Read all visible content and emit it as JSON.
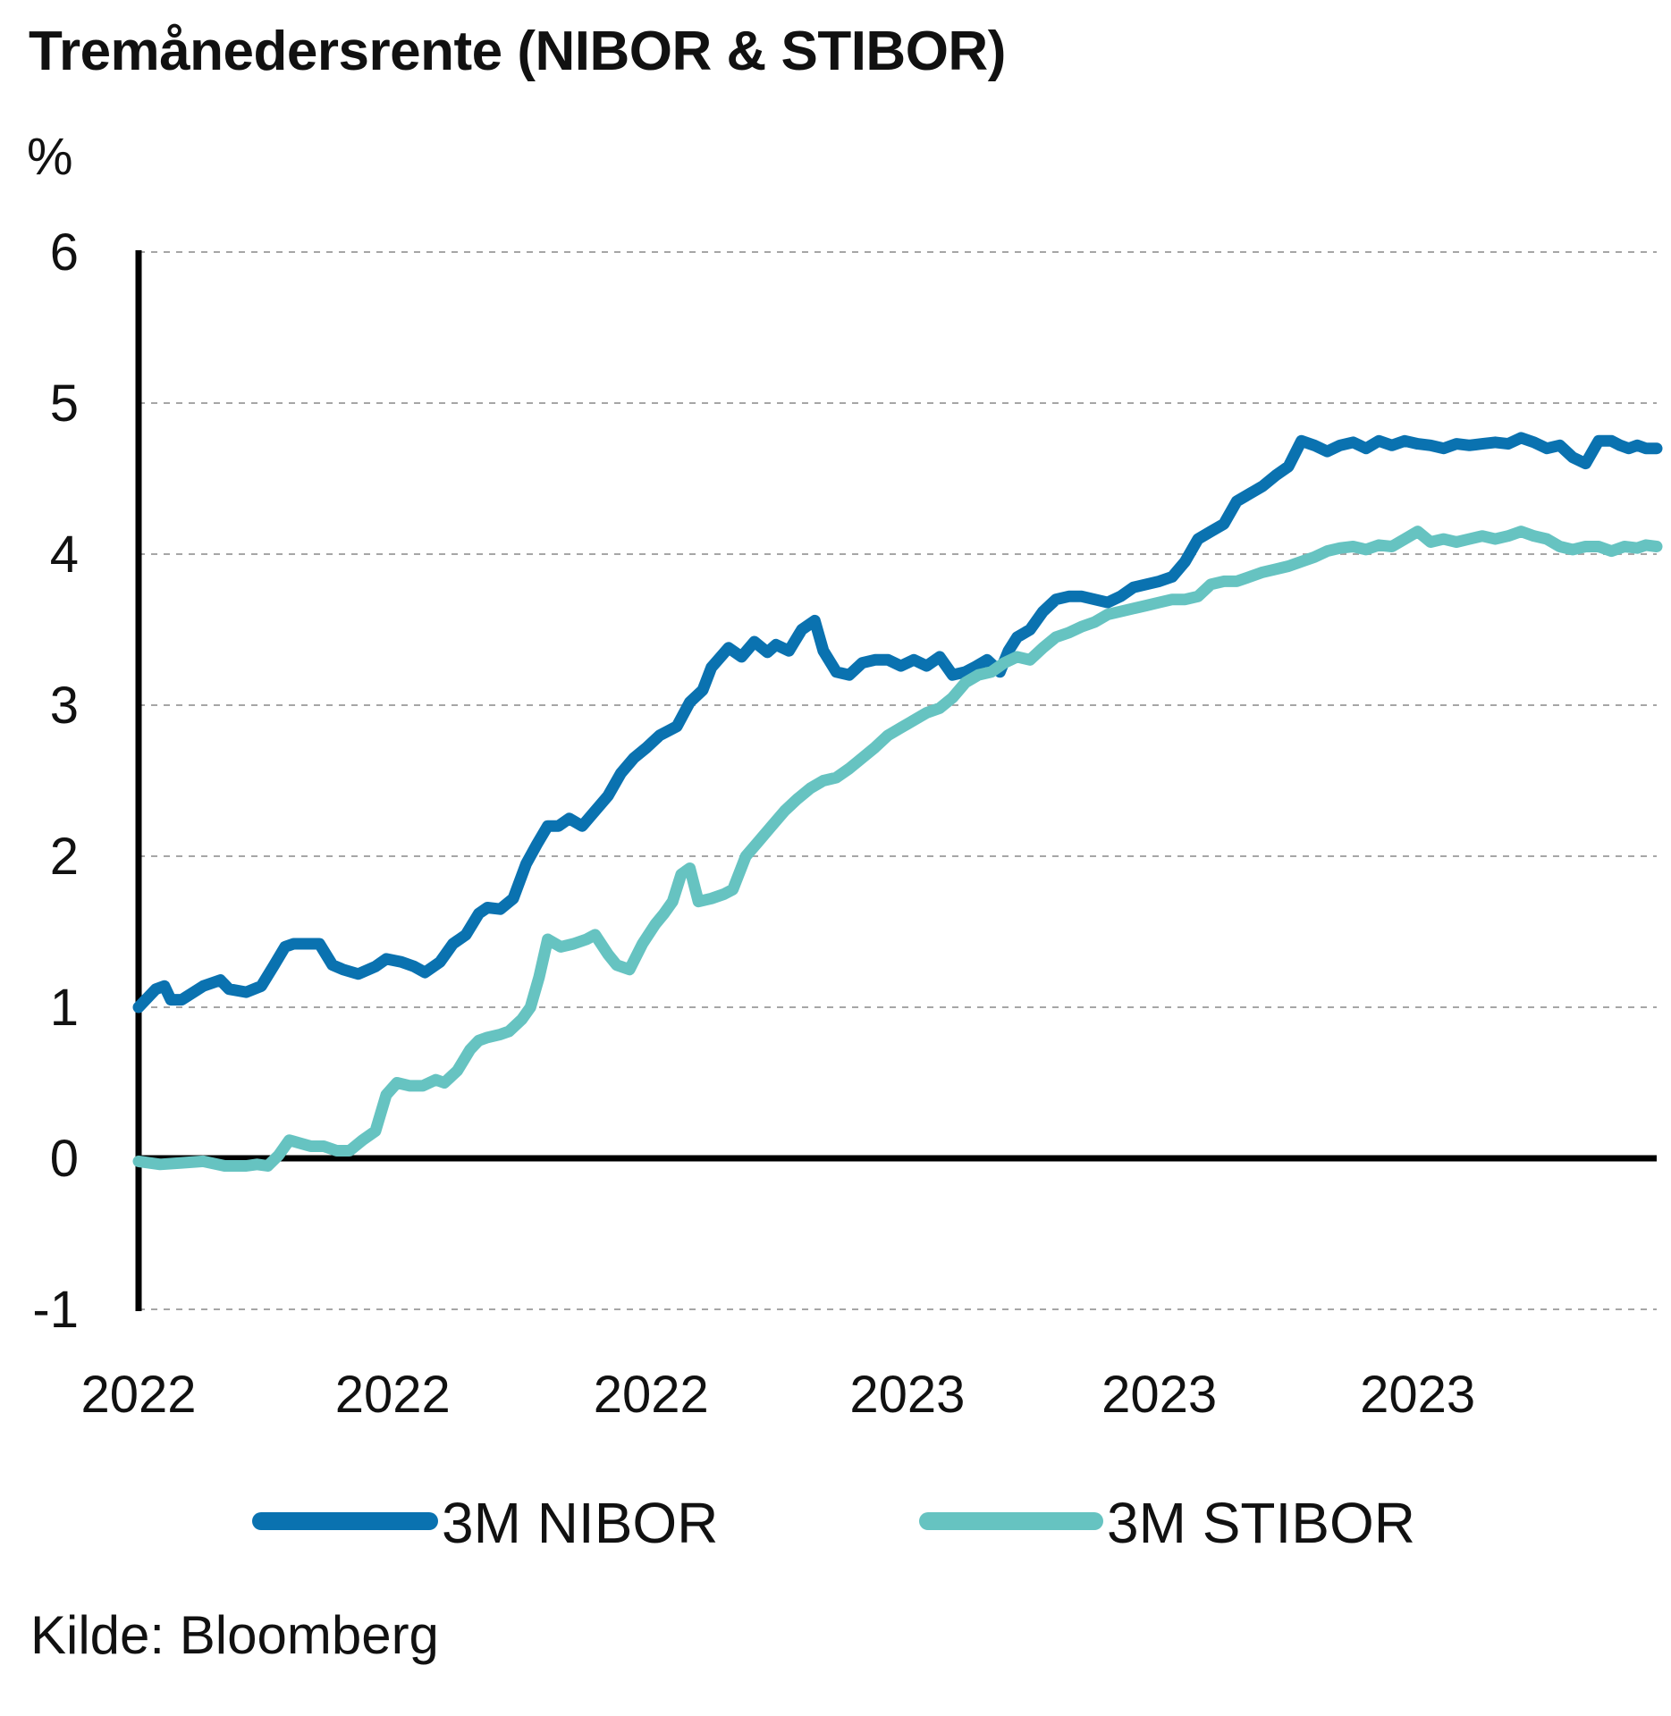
{
  "chart_data": {
    "type": "line",
    "title": "Tremånedersrente (NIBOR & STIBOR)",
    "ylabel": "%",
    "xlabel": "",
    "source": "Kilde: Bloomberg",
    "ylim": [
      -1,
      6
    ],
    "yticks": [
      -1,
      0,
      1,
      2,
      3,
      4,
      5,
      6
    ],
    "xlim": [
      0,
      705
    ],
    "x_ticks": [
      {
        "x": 0,
        "label": "2022"
      },
      {
        "x": 118,
        "label": "2022"
      },
      {
        "x": 238,
        "label": "2022"
      },
      {
        "x": 357,
        "label": "2023"
      },
      {
        "x": 474,
        "label": "2023"
      },
      {
        "x": 594,
        "label": "2023"
      }
    ],
    "grid": "horizontal dashed",
    "legend_position": "bottom",
    "series": [
      {
        "name": "3M NIBOR",
        "color": "#0a72b0",
        "x": [
          0,
          8,
          12,
          15,
          20,
          30,
          38,
          42,
          50,
          57,
          63,
          68,
          72,
          80,
          84,
          90,
          95,
          102,
          110,
          115,
          122,
          128,
          133,
          140,
          146,
          152,
          158,
          162,
          168,
          174,
          180,
          185,
          190,
          195,
          200,
          206,
          212,
          218,
          224,
          230,
          236,
          242,
          246,
          250,
          256,
          262,
          266,
          274,
          280,
          286,
          292,
          296,
          302,
          308,
          314,
          318,
          324,
          330,
          336,
          342,
          348,
          354,
          360,
          366,
          372,
          378,
          384,
          388,
          394,
          400,
          404,
          408,
          414,
          420,
          426,
          432,
          438,
          444,
          450,
          456,
          462,
          468,
          474,
          480,
          486,
          492,
          498,
          504,
          510,
          516,
          522,
          528,
          534,
          540,
          546,
          552,
          558,
          564,
          570,
          576,
          582,
          588,
          594,
          600,
          606,
          612,
          618,
          624,
          630,
          636,
          642,
          648,
          654,
          660,
          666,
          672,
          678,
          684,
          688,
          692,
          696,
          700,
          705
        ],
        "values": [
          1.0,
          1.12,
          1.14,
          1.05,
          1.05,
          1.14,
          1.18,
          1.12,
          1.1,
          1.14,
          1.28,
          1.4,
          1.42,
          1.42,
          1.42,
          1.28,
          1.25,
          1.22,
          1.27,
          1.32,
          1.3,
          1.27,
          1.23,
          1.3,
          1.42,
          1.48,
          1.62,
          1.66,
          1.65,
          1.72,
          1.95,
          2.08,
          2.2,
          2.2,
          2.25,
          2.2,
          2.3,
          2.4,
          2.55,
          2.65,
          2.72,
          2.8,
          2.83,
          2.86,
          3.02,
          3.1,
          3.25,
          3.38,
          3.32,
          3.42,
          3.35,
          3.4,
          3.36,
          3.5,
          3.56,
          3.36,
          3.22,
          3.2,
          3.28,
          3.3,
          3.3,
          3.26,
          3.3,
          3.26,
          3.32,
          3.2,
          3.22,
          3.25,
          3.3,
          3.22,
          3.36,
          3.45,
          3.5,
          3.62,
          3.7,
          3.72,
          3.72,
          3.7,
          3.68,
          3.72,
          3.78,
          3.8,
          3.82,
          3.85,
          3.95,
          4.1,
          4.15,
          4.2,
          4.35,
          4.4,
          4.45,
          4.52,
          4.58,
          4.75,
          4.72,
          4.68,
          4.72,
          4.74,
          4.7,
          4.75,
          4.72,
          4.75,
          4.73,
          4.72,
          4.7,
          4.73,
          4.72,
          4.73,
          4.74,
          4.73,
          4.77,
          4.74,
          4.7,
          4.72,
          4.64,
          4.6,
          4.75,
          4.75,
          4.72,
          4.7,
          4.72,
          4.7,
          4.7
        ]
      },
      {
        "name": "3M STIBOR",
        "color": "#66c3c1",
        "x": [
          0,
          10,
          20,
          30,
          40,
          50,
          55,
          60,
          65,
          70,
          75,
          80,
          86,
          92,
          98,
          104,
          110,
          115,
          120,
          126,
          132,
          138,
          142,
          148,
          154,
          158,
          162,
          168,
          172,
          178,
          182,
          186,
          190,
          196,
          202,
          208,
          212,
          218,
          222,
          228,
          234,
          240,
          244,
          248,
          252,
          256,
          260,
          266,
          272,
          276,
          282,
          288,
          294,
          300,
          306,
          312,
          318,
          324,
          330,
          336,
          342,
          348,
          354,
          360,
          366,
          372,
          378,
          384,
          390,
          396,
          402,
          408,
          414,
          420,
          426,
          432,
          438,
          444,
          450,
          456,
          462,
          468,
          474,
          480,
          486,
          492,
          498,
          504,
          510,
          516,
          522,
          528,
          534,
          540,
          546,
          552,
          558,
          564,
          570,
          576,
          582,
          588,
          594,
          600,
          606,
          612,
          618,
          624,
          630,
          636,
          642,
          648,
          654,
          660,
          666,
          672,
          678,
          684,
          690,
          696,
          700,
          705
        ],
        "values": [
          -0.02,
          -0.04,
          -0.03,
          -0.02,
          -0.05,
          -0.05,
          -0.04,
          -0.05,
          0.02,
          0.12,
          0.1,
          0.08,
          0.08,
          0.05,
          0.05,
          0.12,
          0.18,
          0.42,
          0.5,
          0.48,
          0.48,
          0.52,
          0.5,
          0.58,
          0.72,
          0.78,
          0.8,
          0.82,
          0.84,
          0.92,
          1.0,
          1.2,
          1.45,
          1.4,
          1.42,
          1.45,
          1.48,
          1.35,
          1.28,
          1.25,
          1.42,
          1.55,
          1.62,
          1.7,
          1.88,
          1.92,
          1.7,
          1.72,
          1.75,
          1.78,
          2.0,
          2.1,
          2.2,
          2.3,
          2.38,
          2.45,
          2.5,
          2.52,
          2.58,
          2.65,
          2.72,
          2.8,
          2.85,
          2.9,
          2.95,
          2.98,
          3.05,
          3.15,
          3.2,
          3.22,
          3.28,
          3.32,
          3.3,
          3.38,
          3.45,
          3.48,
          3.52,
          3.55,
          3.6,
          3.62,
          3.64,
          3.66,
          3.68,
          3.7,
          3.7,
          3.72,
          3.8,
          3.82,
          3.82,
          3.85,
          3.88,
          3.9,
          3.92,
          3.95,
          3.98,
          4.02,
          4.04,
          4.05,
          4.03,
          4.06,
          4.05,
          4.1,
          4.15,
          4.08,
          4.1,
          4.08,
          4.1,
          4.12,
          4.1,
          4.12,
          4.15,
          4.12,
          4.1,
          4.05,
          4.03,
          4.05,
          4.05,
          4.02,
          4.05,
          4.04,
          4.06,
          4.05
        ]
      }
    ]
  }
}
